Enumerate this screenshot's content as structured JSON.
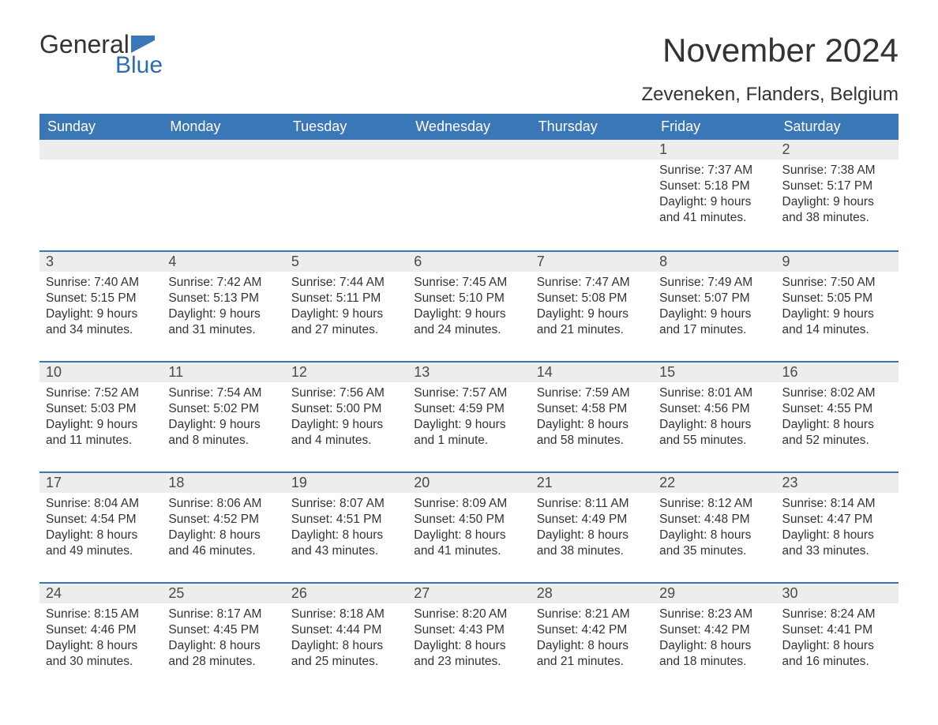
{
  "brand": {
    "word1": "General",
    "word2": "Blue"
  },
  "title": "November 2024",
  "location": "Zeveneken, Flanders, Belgium",
  "colors": {
    "header_bg": "#3a77b7",
    "header_text": "#ffffff",
    "day_header_bg": "#ededed",
    "day_border": "#3a77b7",
    "text": "#333333",
    "brand_blue": "#2c6caf",
    "background": "#ffffff"
  },
  "typography": {
    "title_fontsize": 42,
    "location_fontsize": 24,
    "weekday_fontsize": 18,
    "daynum_fontsize": 18,
    "body_fontsize": 15.5,
    "font_family": "Arial"
  },
  "calendar": {
    "type": "table",
    "weekdays": [
      "Sunday",
      "Monday",
      "Tuesday",
      "Wednesday",
      "Thursday",
      "Friday",
      "Saturday"
    ],
    "weeks": [
      [
        null,
        null,
        null,
        null,
        null,
        {
          "day": "1",
          "sunrise": "Sunrise: 7:37 AM",
          "sunset": "Sunset: 5:18 PM",
          "daylight": "Daylight: 9 hours and 41 minutes."
        },
        {
          "day": "2",
          "sunrise": "Sunrise: 7:38 AM",
          "sunset": "Sunset: 5:17 PM",
          "daylight": "Daylight: 9 hours and 38 minutes."
        }
      ],
      [
        {
          "day": "3",
          "sunrise": "Sunrise: 7:40 AM",
          "sunset": "Sunset: 5:15 PM",
          "daylight": "Daylight: 9 hours and 34 minutes."
        },
        {
          "day": "4",
          "sunrise": "Sunrise: 7:42 AM",
          "sunset": "Sunset: 5:13 PM",
          "daylight": "Daylight: 9 hours and 31 minutes."
        },
        {
          "day": "5",
          "sunrise": "Sunrise: 7:44 AM",
          "sunset": "Sunset: 5:11 PM",
          "daylight": "Daylight: 9 hours and 27 minutes."
        },
        {
          "day": "6",
          "sunrise": "Sunrise: 7:45 AM",
          "sunset": "Sunset: 5:10 PM",
          "daylight": "Daylight: 9 hours and 24 minutes."
        },
        {
          "day": "7",
          "sunrise": "Sunrise: 7:47 AM",
          "sunset": "Sunset: 5:08 PM",
          "daylight": "Daylight: 9 hours and 21 minutes."
        },
        {
          "day": "8",
          "sunrise": "Sunrise: 7:49 AM",
          "sunset": "Sunset: 5:07 PM",
          "daylight": "Daylight: 9 hours and 17 minutes."
        },
        {
          "day": "9",
          "sunrise": "Sunrise: 7:50 AM",
          "sunset": "Sunset: 5:05 PM",
          "daylight": "Daylight: 9 hours and 14 minutes."
        }
      ],
      [
        {
          "day": "10",
          "sunrise": "Sunrise: 7:52 AM",
          "sunset": "Sunset: 5:03 PM",
          "daylight": "Daylight: 9 hours and 11 minutes."
        },
        {
          "day": "11",
          "sunrise": "Sunrise: 7:54 AM",
          "sunset": "Sunset: 5:02 PM",
          "daylight": "Daylight: 9 hours and 8 minutes."
        },
        {
          "day": "12",
          "sunrise": "Sunrise: 7:56 AM",
          "sunset": "Sunset: 5:00 PM",
          "daylight": "Daylight: 9 hours and 4 minutes."
        },
        {
          "day": "13",
          "sunrise": "Sunrise: 7:57 AM",
          "sunset": "Sunset: 4:59 PM",
          "daylight": "Daylight: 9 hours and 1 minute."
        },
        {
          "day": "14",
          "sunrise": "Sunrise: 7:59 AM",
          "sunset": "Sunset: 4:58 PM",
          "daylight": "Daylight: 8 hours and 58 minutes."
        },
        {
          "day": "15",
          "sunrise": "Sunrise: 8:01 AM",
          "sunset": "Sunset: 4:56 PM",
          "daylight": "Daylight: 8 hours and 55 minutes."
        },
        {
          "day": "16",
          "sunrise": "Sunrise: 8:02 AM",
          "sunset": "Sunset: 4:55 PM",
          "daylight": "Daylight: 8 hours and 52 minutes."
        }
      ],
      [
        {
          "day": "17",
          "sunrise": "Sunrise: 8:04 AM",
          "sunset": "Sunset: 4:54 PM",
          "daylight": "Daylight: 8 hours and 49 minutes."
        },
        {
          "day": "18",
          "sunrise": "Sunrise: 8:06 AM",
          "sunset": "Sunset: 4:52 PM",
          "daylight": "Daylight: 8 hours and 46 minutes."
        },
        {
          "day": "19",
          "sunrise": "Sunrise: 8:07 AM",
          "sunset": "Sunset: 4:51 PM",
          "daylight": "Daylight: 8 hours and 43 minutes."
        },
        {
          "day": "20",
          "sunrise": "Sunrise: 8:09 AM",
          "sunset": "Sunset: 4:50 PM",
          "daylight": "Daylight: 8 hours and 41 minutes."
        },
        {
          "day": "21",
          "sunrise": "Sunrise: 8:11 AM",
          "sunset": "Sunset: 4:49 PM",
          "daylight": "Daylight: 8 hours and 38 minutes."
        },
        {
          "day": "22",
          "sunrise": "Sunrise: 8:12 AM",
          "sunset": "Sunset: 4:48 PM",
          "daylight": "Daylight: 8 hours and 35 minutes."
        },
        {
          "day": "23",
          "sunrise": "Sunrise: 8:14 AM",
          "sunset": "Sunset: 4:47 PM",
          "daylight": "Daylight: 8 hours and 33 minutes."
        }
      ],
      [
        {
          "day": "24",
          "sunrise": "Sunrise: 8:15 AM",
          "sunset": "Sunset: 4:46 PM",
          "daylight": "Daylight: 8 hours and 30 minutes."
        },
        {
          "day": "25",
          "sunrise": "Sunrise: 8:17 AM",
          "sunset": "Sunset: 4:45 PM",
          "daylight": "Daylight: 8 hours and 28 minutes."
        },
        {
          "day": "26",
          "sunrise": "Sunrise: 8:18 AM",
          "sunset": "Sunset: 4:44 PM",
          "daylight": "Daylight: 8 hours and 25 minutes."
        },
        {
          "day": "27",
          "sunrise": "Sunrise: 8:20 AM",
          "sunset": "Sunset: 4:43 PM",
          "daylight": "Daylight: 8 hours and 23 minutes."
        },
        {
          "day": "28",
          "sunrise": "Sunrise: 8:21 AM",
          "sunset": "Sunset: 4:42 PM",
          "daylight": "Daylight: 8 hours and 21 minutes."
        },
        {
          "day": "29",
          "sunrise": "Sunrise: 8:23 AM",
          "sunset": "Sunset: 4:42 PM",
          "daylight": "Daylight: 8 hours and 18 minutes."
        },
        {
          "day": "30",
          "sunrise": "Sunrise: 8:24 AM",
          "sunset": "Sunset: 4:41 PM",
          "daylight": "Daylight: 8 hours and 16 minutes."
        }
      ]
    ]
  }
}
